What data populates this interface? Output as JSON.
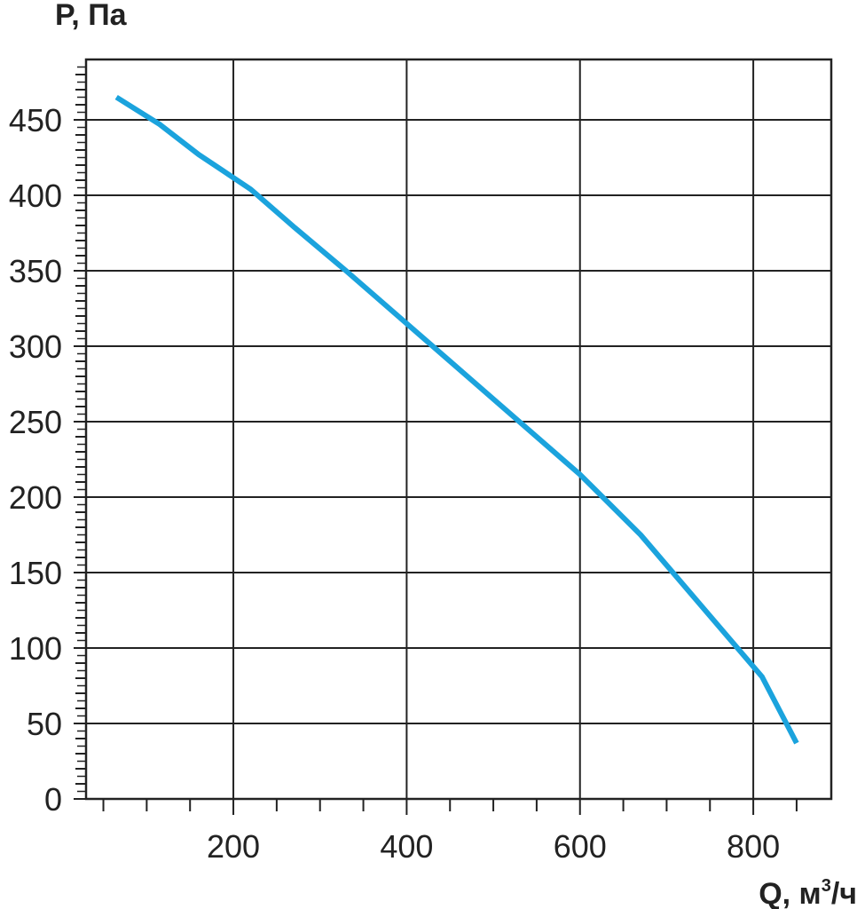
{
  "chart_data": {
    "type": "line",
    "ylabel": "P, Па",
    "xlabel_main": "Q, м",
    "xlabel_sup": "3",
    "xlabel_tail": "/ч",
    "xlim": [
      30,
      890
    ],
    "ylim": [
      0,
      490
    ],
    "x_ticks": [
      200,
      400,
      600,
      800
    ],
    "x_tick_labels": [
      "200",
      "400",
      "600",
      "800"
    ],
    "y_ticks": [
      0,
      50,
      100,
      150,
      200,
      250,
      300,
      350,
      400,
      450
    ],
    "y_tick_labels": [
      "0",
      "50",
      "100",
      "150",
      "200",
      "250",
      "300",
      "350",
      "400",
      "450"
    ],
    "grid": true,
    "line_color": "#1ba3dd",
    "grid_color": "#222222",
    "series": [
      {
        "x": [
          65,
          115,
          160,
          220,
          270,
          330,
          400,
          470,
          540,
          600,
          670,
          740,
          810,
          850
        ],
        "y": [
          465,
          447,
          427,
          404,
          379,
          350,
          315,
          280,
          245,
          215,
          175,
          128,
          81,
          37
        ]
      }
    ]
  }
}
